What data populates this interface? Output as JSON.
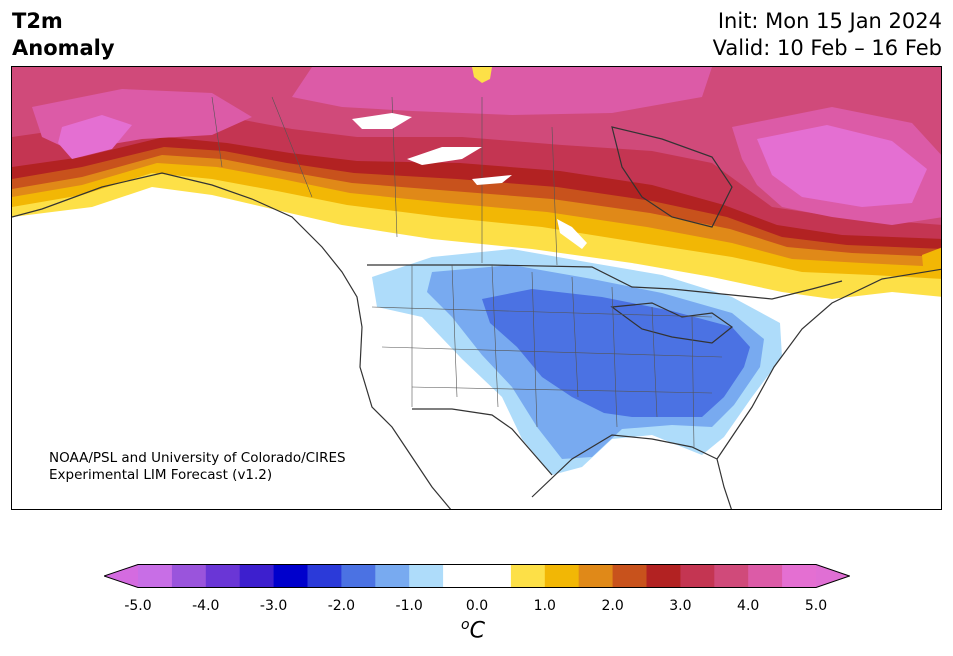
{
  "title": {
    "left_line1": "T2m",
    "left_line2": "Anomaly",
    "init": "Init: Mon 15 Jan 2024",
    "valid": "Valid: 10 Feb – 16 Feb"
  },
  "credit": {
    "line1": "NOAA/PSL and University of Colorado/CIRES",
    "line2": "Experimental LIM Forecast (v1.2)"
  },
  "colorbar": {
    "unit_base": "C",
    "unit_sup": "o",
    "ticks": [
      "-5.0",
      "-4.0",
      "-3.0",
      "-2.0",
      "-1.0",
      "0.0",
      "1.0",
      "2.0",
      "3.0",
      "4.0",
      "5.0"
    ],
    "tick_values": [
      -5,
      -4,
      -3,
      -2,
      -1,
      0,
      1,
      2,
      3,
      4,
      5
    ],
    "bins": [
      {
        "from": -5.0,
        "to": -4.5,
        "color": "#c86ee6"
      },
      {
        "from": -4.5,
        "to": -4.0,
        "color": "#9a54dc"
      },
      {
        "from": -4.0,
        "to": -3.5,
        "color": "#6a36d6"
      },
      {
        "from": -3.5,
        "to": -3.0,
        "color": "#3d1fce"
      },
      {
        "from": -3.0,
        "to": -2.5,
        "color": "#0000cc"
      },
      {
        "from": -2.5,
        "to": -2.0,
        "color": "#2b3ad9"
      },
      {
        "from": -2.0,
        "to": -1.5,
        "color": "#4b72e3"
      },
      {
        "from": -1.5,
        "to": -1.0,
        "color": "#78aaf0"
      },
      {
        "from": -1.0,
        "to": -0.5,
        "color": "#aedcfa"
      },
      {
        "from": -0.5,
        "to": 0.5,
        "color": "#ffffff"
      },
      {
        "from": 0.5,
        "to": 1.0,
        "color": "#fde047"
      },
      {
        "from": 1.0,
        "to": 1.5,
        "color": "#f2b705"
      },
      {
        "from": 1.5,
        "to": 2.0,
        "color": "#e08918"
      },
      {
        "from": 2.0,
        "to": 2.5,
        "color": "#c8521c"
      },
      {
        "from": 2.5,
        "to": 3.0,
        "color": "#b22222"
      },
      {
        "from": 3.0,
        "to": 3.5,
        "color": "#c43552"
      },
      {
        "from": 3.5,
        "to": 4.0,
        "color": "#d04a7a"
      },
      {
        "from": 4.0,
        "to": 4.5,
        "color": "#dc5ba7"
      },
      {
        "from": 4.5,
        "to": 5.0,
        "color": "#e46fd2"
      }
    ],
    "extend_low_color": "#d46be0",
    "extend_high_color": "#e06fd4"
  },
  "map": {
    "region": "North America",
    "warm_core_color": "#e46fd2",
    "cold_core_color": "#4b72e3"
  }
}
